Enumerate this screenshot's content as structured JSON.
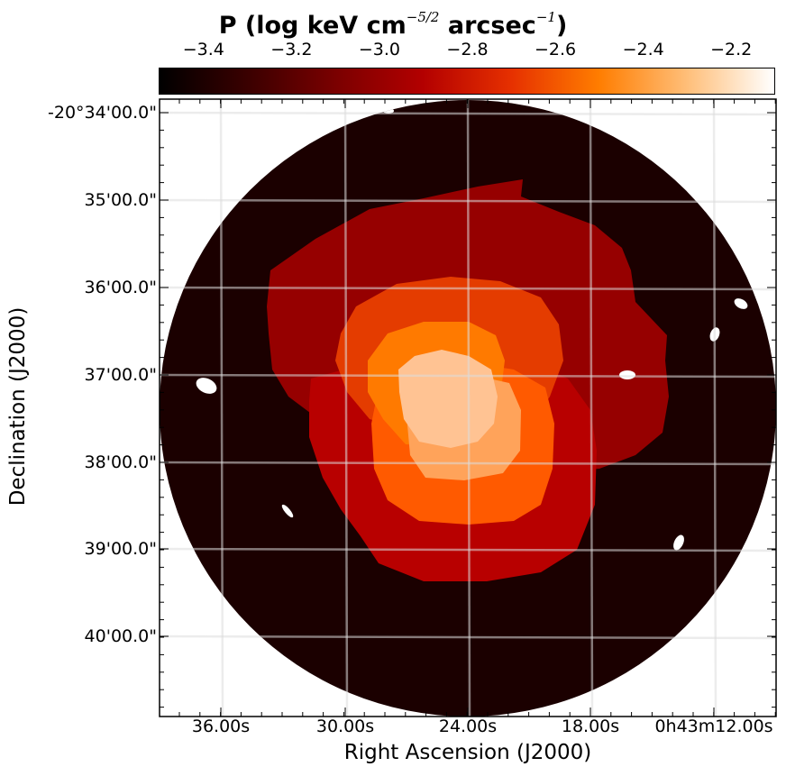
{
  "colorbar": {
    "title": "P (log keV cm",
    "title_exp": "−5/2",
    "title_unit": "arcsec",
    "title_exp2": "−1",
    "title_close": ")",
    "colormap": "gist_heat",
    "range": [
      -3.5,
      -2.1
    ],
    "ticks": [
      "−3.4",
      "−3.2",
      "−3.0",
      "−2.8",
      "−2.6",
      "−2.4",
      "−2.2"
    ],
    "stops": [
      "#000000",
      "#3a0000",
      "#7a0000",
      "#b30000",
      "#e63000",
      "#ff7d00",
      "#ffbe78",
      "#ffffff"
    ]
  },
  "axes": {
    "xlabel": "Right Ascension (J2000)",
    "ylabel": "Declination (J2000)",
    "dec_ticks": [
      "-20°34'00.0\"",
      "35'00.0\"",
      "36'00.0\"",
      "37'00.0\"",
      "38'00.0\"",
      "39'00.0\"",
      "40'00.0\""
    ],
    "ra_ticks": [
      "36.00s",
      "30.00s",
      "24.00s",
      "18.00s",
      "0h43m12.00s"
    ],
    "grid": true
  },
  "map": {
    "background_color": "#1b0000",
    "levels": [
      {
        "name": "outer",
        "color": "#1b0000"
      },
      {
        "name": "level-1",
        "color": "#960000"
      },
      {
        "name": "level-2",
        "color": "#b80000"
      },
      {
        "name": "level-3",
        "color": "#e43c00"
      },
      {
        "name": "level-4",
        "color": "#ff5a00"
      },
      {
        "name": "level-5",
        "color": "#ff7a00"
      },
      {
        "name": "level-6",
        "color": "#ffa35a"
      },
      {
        "name": "core",
        "color": "#ffc393"
      }
    ],
    "masked_color": "#ffffff"
  }
}
